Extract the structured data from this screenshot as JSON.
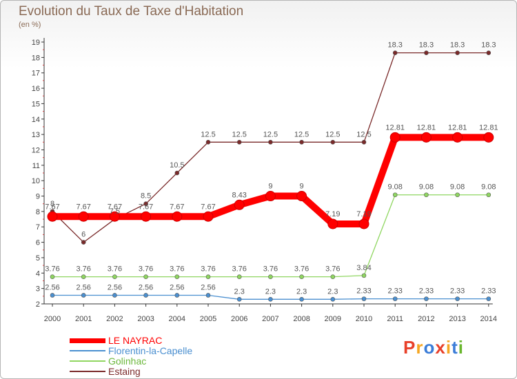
{
  "header": {
    "title": "Evolution du Taux de Taxe d'Habitation",
    "unit": "(en %)"
  },
  "chart_data": {
    "type": "line",
    "title": "Evolution du Taux de Taxe d'Habitation",
    "ylabel": "(en %)",
    "xlabel": "",
    "x": [
      "2000",
      "2001",
      "2002",
      "2003",
      "2004",
      "2005",
      "2006",
      "2007",
      "2008",
      "2009",
      "2010",
      "2011",
      "2012",
      "2013",
      "2014"
    ],
    "yticks": [
      2,
      3,
      4,
      5,
      6,
      7,
      8,
      9,
      10,
      11,
      12,
      13,
      14,
      15,
      16,
      17,
      18,
      19
    ],
    "ylim": [
      2,
      19
    ],
    "grid": false,
    "legend": "bottom-left",
    "series": [
      {
        "name": "LE NAYRAC",
        "color": "#ff0000",
        "values": [
          7.67,
          7.67,
          7.67,
          7.67,
          7.67,
          7.67,
          8.43,
          9,
          9,
          7.19,
          7.19,
          12.81,
          12.81,
          12.81,
          12.81
        ],
        "labels": [
          "7.67",
          "7.67",
          "7.67",
          "7.67",
          "7.67",
          "7.67",
          "8.43",
          "9",
          "9",
          "7.19",
          "7.19",
          "12.81",
          "12.81",
          "12.81",
          "12.81"
        ]
      },
      {
        "name": "Florentin-la-Capelle",
        "color": "#4a8fd0",
        "values": [
          2.56,
          2.56,
          2.56,
          2.56,
          2.56,
          2.56,
          2.3,
          2.3,
          2.3,
          2.3,
          2.33,
          2.33,
          2.33,
          2.33,
          2.33
        ],
        "labels": [
          "2.56",
          "2.56",
          "2.56",
          "2.56",
          "2.56",
          "2.56",
          "2.3",
          "2.3",
          "2.3",
          "2.3",
          "2.33",
          "2.33",
          "2.33",
          "2.33",
          "2.33"
        ]
      },
      {
        "name": "Golinhac",
        "color": "#8fd660",
        "values": [
          3.76,
          3.76,
          3.76,
          3.76,
          3.76,
          3.76,
          3.76,
          3.76,
          3.76,
          3.76,
          3.84,
          9.08,
          9.08,
          9.08,
          9.08
        ],
        "labels": [
          "3.76",
          "3.76",
          "3.76",
          "3.76",
          "3.76",
          "3.76",
          "3.76",
          "3.76",
          "3.76",
          "3.76",
          "3.84",
          "9.08",
          "9.08",
          "9.08",
          "9.08"
        ]
      },
      {
        "name": "Estaing",
        "color": "#7a2a2a",
        "values": [
          8,
          6,
          7.5,
          8.5,
          10.5,
          12.5,
          12.5,
          12.5,
          12.5,
          12.5,
          12.5,
          18.3,
          18.3,
          18.3,
          18.3
        ],
        "labels": [
          "8",
          "6",
          "7.5",
          "8.5",
          "10.5",
          "12.5",
          "12.5",
          "12.5",
          "12.5",
          "12.5",
          "12.5",
          "18.3",
          "18.3",
          "18.3",
          "18.3"
        ]
      }
    ]
  },
  "logo": {
    "text": "Proxiti",
    "colors": [
      "#e8402a",
      "#f5a623",
      "#3b7dd8",
      "#e8402a",
      "#f5a623",
      "#3b7dd8",
      "#69b62d"
    ]
  }
}
